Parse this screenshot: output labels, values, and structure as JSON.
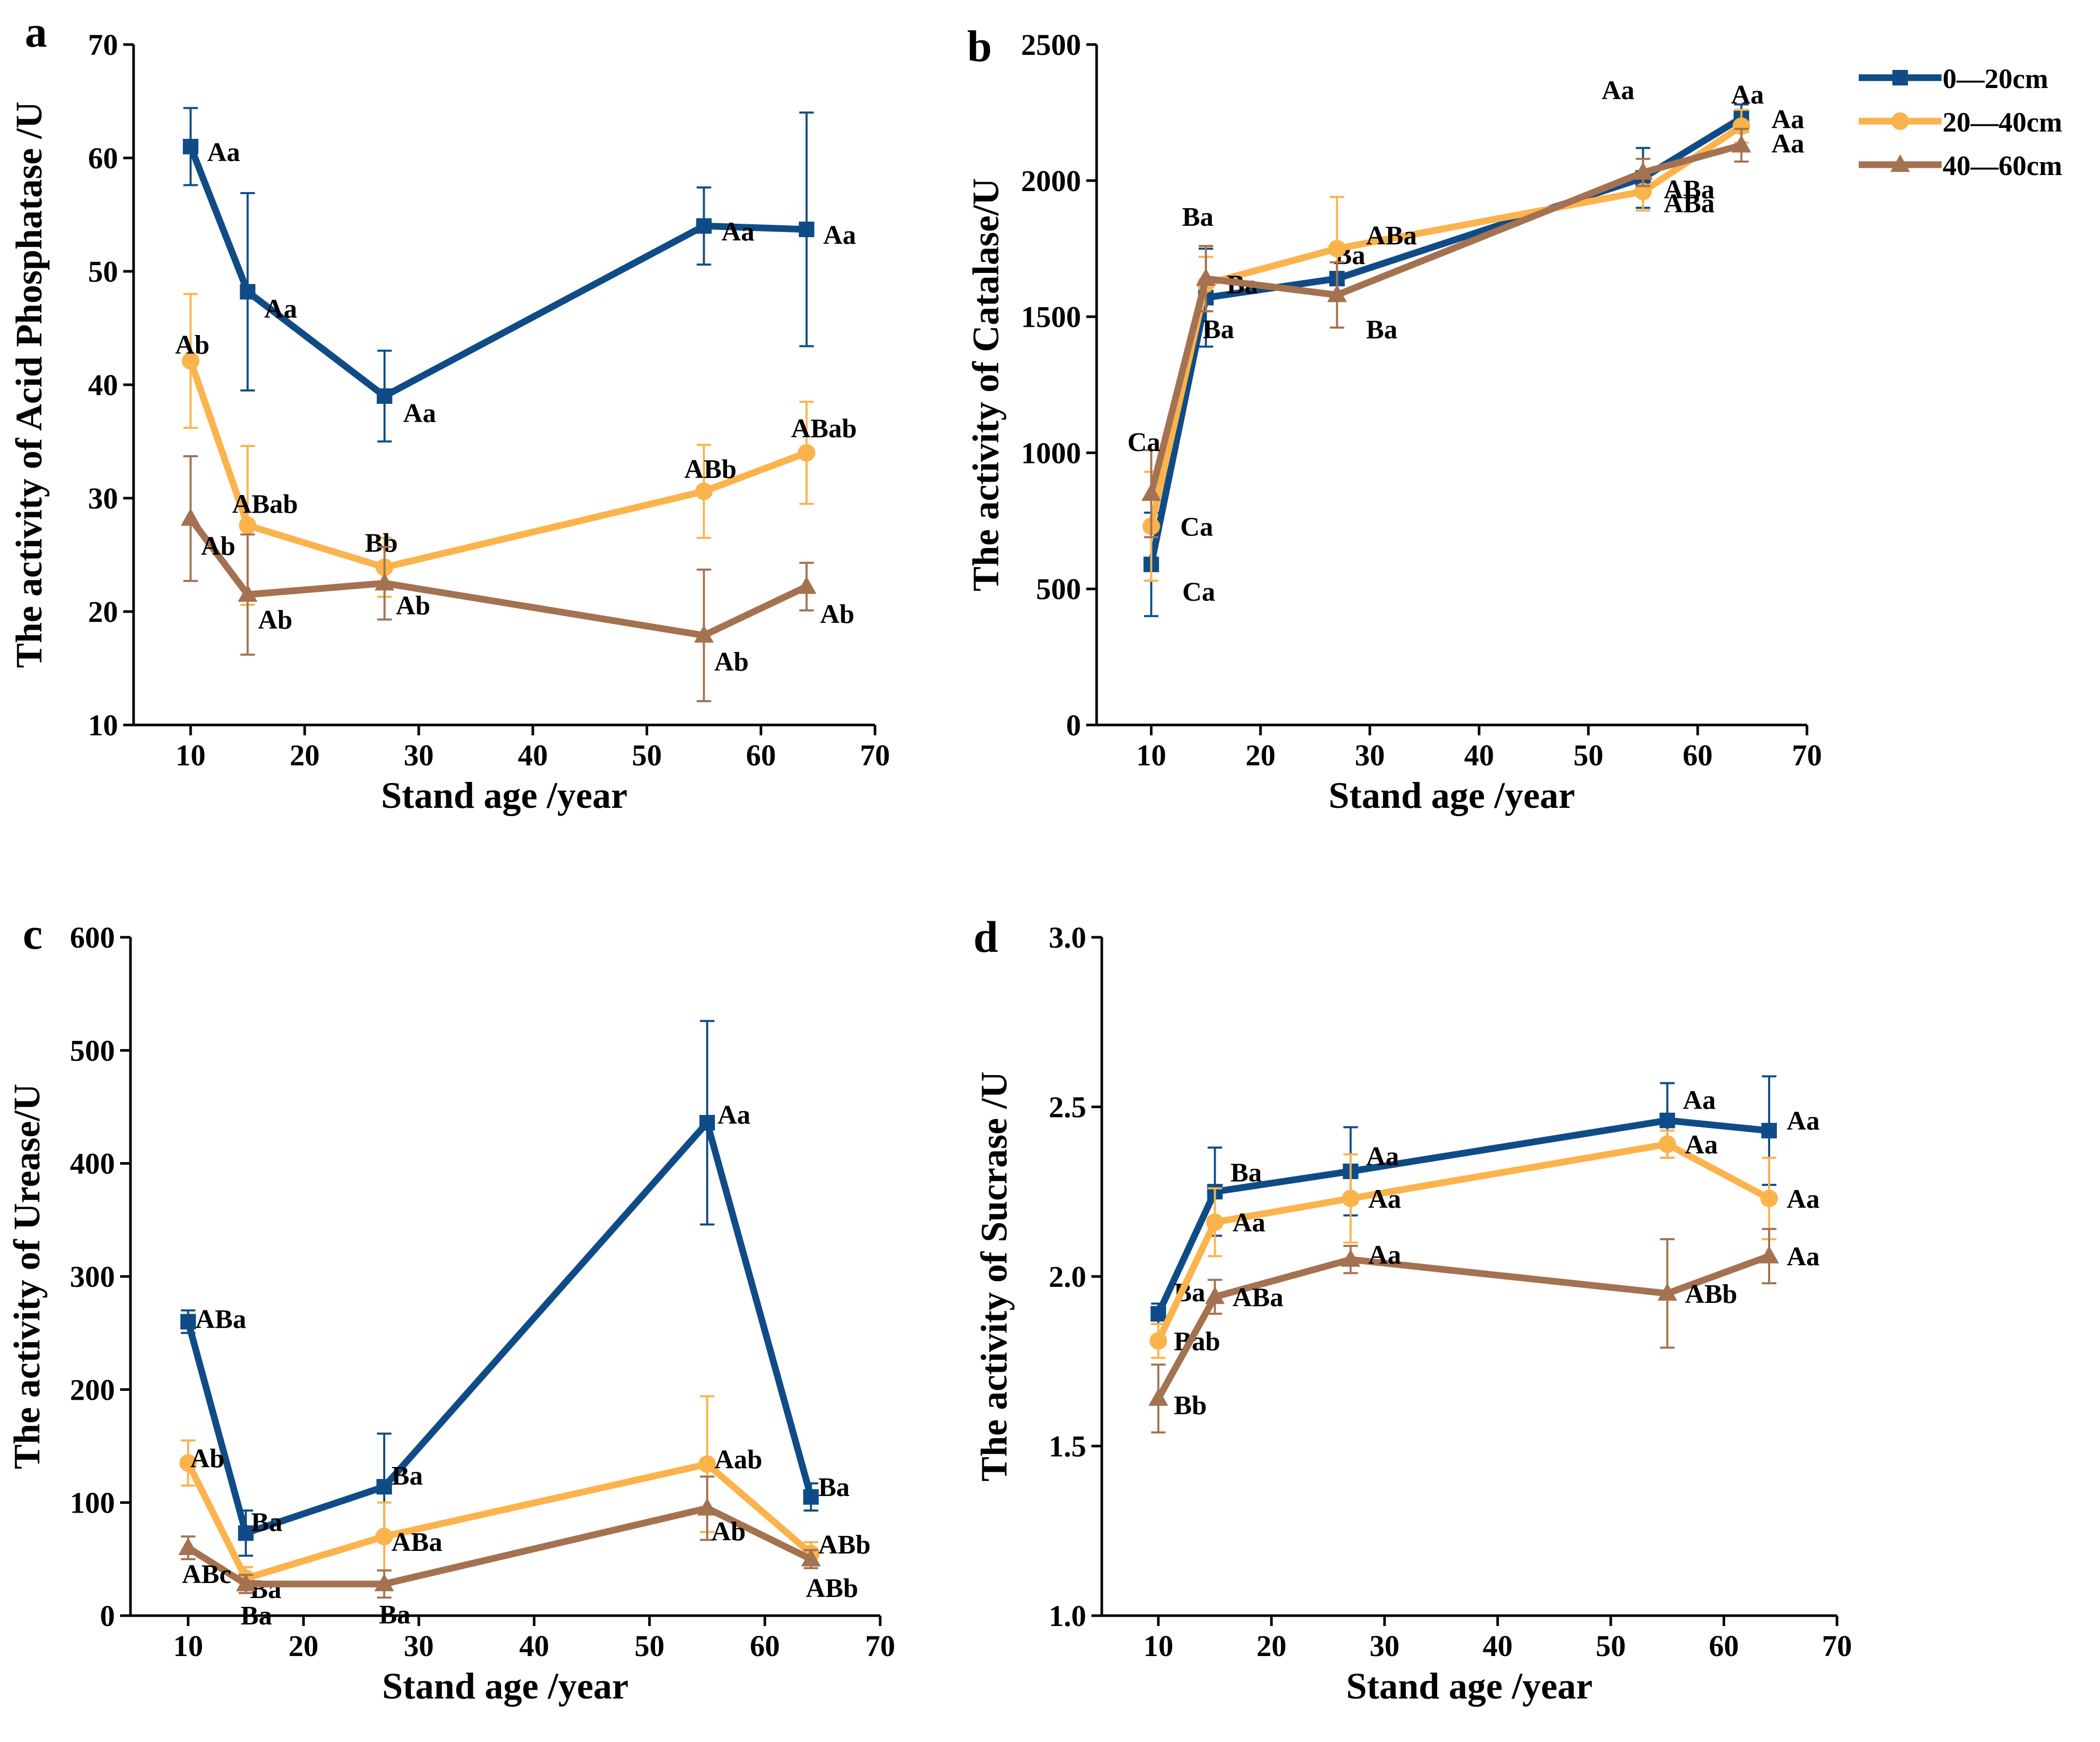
{
  "legend": [
    {
      "name": "0—20cm",
      "color": "#0f4c87",
      "marker": "square"
    },
    {
      "name": "20—40cm",
      "color": "#fbb34c",
      "marker": "circle"
    },
    {
      "name": "40—60cm",
      "color": "#a47250",
      "marker": "triangle"
    }
  ],
  "chart_data": [
    {
      "panel": "a",
      "type": "line",
      "title": "",
      "xlabel": "Stand age /year",
      "ylabel": "The activity of Acid Phosphatase /U",
      "xlim": [
        5,
        70
      ],
      "ylim": [
        10,
        70
      ],
      "xticks": [
        10,
        20,
        30,
        40,
        50,
        60,
        70
      ],
      "yticks": [
        10,
        20,
        30,
        40,
        50,
        60,
        70
      ],
      "ytick_decimals": 0,
      "x": [
        10,
        15,
        27,
        55,
        64
      ],
      "series": [
        {
          "name": "0—20cm",
          "values": [
            61,
            48.2,
            39,
            54,
            53.7
          ],
          "errors": [
            3.4,
            8.7,
            4,
            3.4,
            10.3
          ],
          "labels": [
            "Aa",
            "Aa",
            "Aa",
            "Aa",
            "Aa"
          ]
        },
        {
          "name": "20—40cm",
          "values": [
            42.1,
            27.6,
            23.9,
            30.6,
            34
          ],
          "errors": [
            5.9,
            7,
            2.6,
            4.1,
            4.5
          ],
          "labels": [
            "Ab",
            "ABab",
            "Bb",
            "ABb",
            "ABab"
          ]
        },
        {
          "name": "40—60cm",
          "values": [
            28.2,
            21.5,
            22.5,
            17.9,
            22.2
          ],
          "errors": [
            5.5,
            5.3,
            3.2,
            5.8,
            2.1
          ],
          "labels": [
            "Ab",
            "Ab",
            "Ab",
            "Ab",
            "Ab"
          ]
        }
      ]
    },
    {
      "panel": "b",
      "type": "line",
      "title": "",
      "xlabel": "Stand age /year",
      "ylabel": "The activity of Catalase/U",
      "xlim": [
        5,
        70
      ],
      "ylim": [
        0,
        2500
      ],
      "xticks": [
        10,
        20,
        30,
        40,
        50,
        60,
        70
      ],
      "yticks": [
        0,
        500,
        1000,
        1500,
        2000,
        2500
      ],
      "ytick_decimals": 0,
      "x": [
        10,
        15,
        27,
        55,
        64
      ],
      "series": [
        {
          "name": "0—20cm",
          "values": [
            590,
            1570,
            1640,
            2010,
            2230
          ],
          "errors": [
            190,
            180,
            60,
            110,
            50
          ],
          "labels": [
            "Ca",
            "Ba",
            "Ba",
            "Aa",
            "Aa"
          ]
        },
        {
          "name": "20—40cm",
          "values": [
            730,
            1620,
            1750,
            1960,
            2200
          ],
          "errors": [
            200,
            100,
            190,
            70,
            60
          ],
          "labels": [
            "Ca",
            "Ba",
            "ABa",
            "ABa",
            "Aa"
          ]
        },
        {
          "name": "40—60cm",
          "values": [
            850,
            1640,
            1580,
            2030,
            2130
          ],
          "errors": [
            160,
            120,
            120,
            50,
            60
          ],
          "labels": [
            "Ca",
            "Ba",
            "Ba",
            "ABa",
            "Aa"
          ]
        }
      ]
    },
    {
      "panel": "c",
      "type": "line",
      "title": "",
      "xlabel": "Stand age /year",
      "ylabel": "The activity of Urease/U",
      "xlim": [
        5,
        70
      ],
      "ylim": [
        0,
        600
      ],
      "xticks": [
        10,
        20,
        30,
        40,
        50,
        60,
        70
      ],
      "yticks": [
        0,
        100,
        200,
        300,
        400,
        500,
        600
      ],
      "ytick_decimals": 0,
      "x": [
        10,
        15,
        27,
        55,
        64
      ],
      "series": [
        {
          "name": "0—20cm",
          "values": [
            260,
            73,
            114,
            436,
            105
          ],
          "errors": [
            10,
            20,
            47,
            90,
            12
          ],
          "labels": [
            "ABa",
            "Ba",
            "Ba",
            "Aa",
            "Ba"
          ]
        },
        {
          "name": "20—40cm",
          "values": [
            135,
            33,
            70,
            134,
            55
          ],
          "errors": [
            20,
            10,
            30,
            60,
            10
          ],
          "labels": [
            "Ab",
            "Ba",
            "ABa",
            "Aab",
            "ABb"
          ]
        },
        {
          "name": "40—60cm",
          "values": [
            60,
            28,
            28,
            95,
            50
          ],
          "errors": [
            10,
            8,
            12,
            28,
            8
          ],
          "labels": [
            "ABc",
            "Ba",
            "Ba",
            "Ab",
            "ABb"
          ]
        }
      ]
    },
    {
      "panel": "d",
      "type": "line",
      "title": "",
      "xlabel": "Stand age /year",
      "ylabel": "The activity of Sucrase /U",
      "xlim": [
        5,
        70
      ],
      "ylim": [
        1.0,
        3.0
      ],
      "xticks": [
        10,
        20,
        30,
        40,
        50,
        60,
        70
      ],
      "yticks": [
        1.0,
        1.5,
        2.0,
        2.5,
        3.0
      ],
      "ytick_decimals": 1,
      "x": [
        10,
        15,
        27,
        55,
        64
      ],
      "series": [
        {
          "name": "0—20cm",
          "values": [
            1.89,
            2.25,
            2.31,
            2.46,
            2.43
          ],
          "errors": [
            0.03,
            0.13,
            0.13,
            0.11,
            0.16
          ],
          "labels": [
            "Ba",
            "Ba",
            "Aa",
            "Aa",
            "Aa"
          ]
        },
        {
          "name": "20—40cm",
          "values": [
            1.81,
            2.16,
            2.23,
            2.39,
            2.23
          ],
          "errors": [
            0.05,
            0.1,
            0.13,
            0.04,
            0.12
          ],
          "labels": [
            "Bab",
            "Aa",
            "Aa",
            "Aa",
            "Aa"
          ]
        },
        {
          "name": "40—60cm",
          "values": [
            1.64,
            1.94,
            2.05,
            1.95,
            2.06
          ],
          "errors": [
            0.1,
            0.05,
            0.04,
            0.16,
            0.08
          ],
          "labels": [
            "Bb",
            "ABa",
            "Aa",
            "ABb",
            "Aa"
          ]
        }
      ]
    }
  ]
}
